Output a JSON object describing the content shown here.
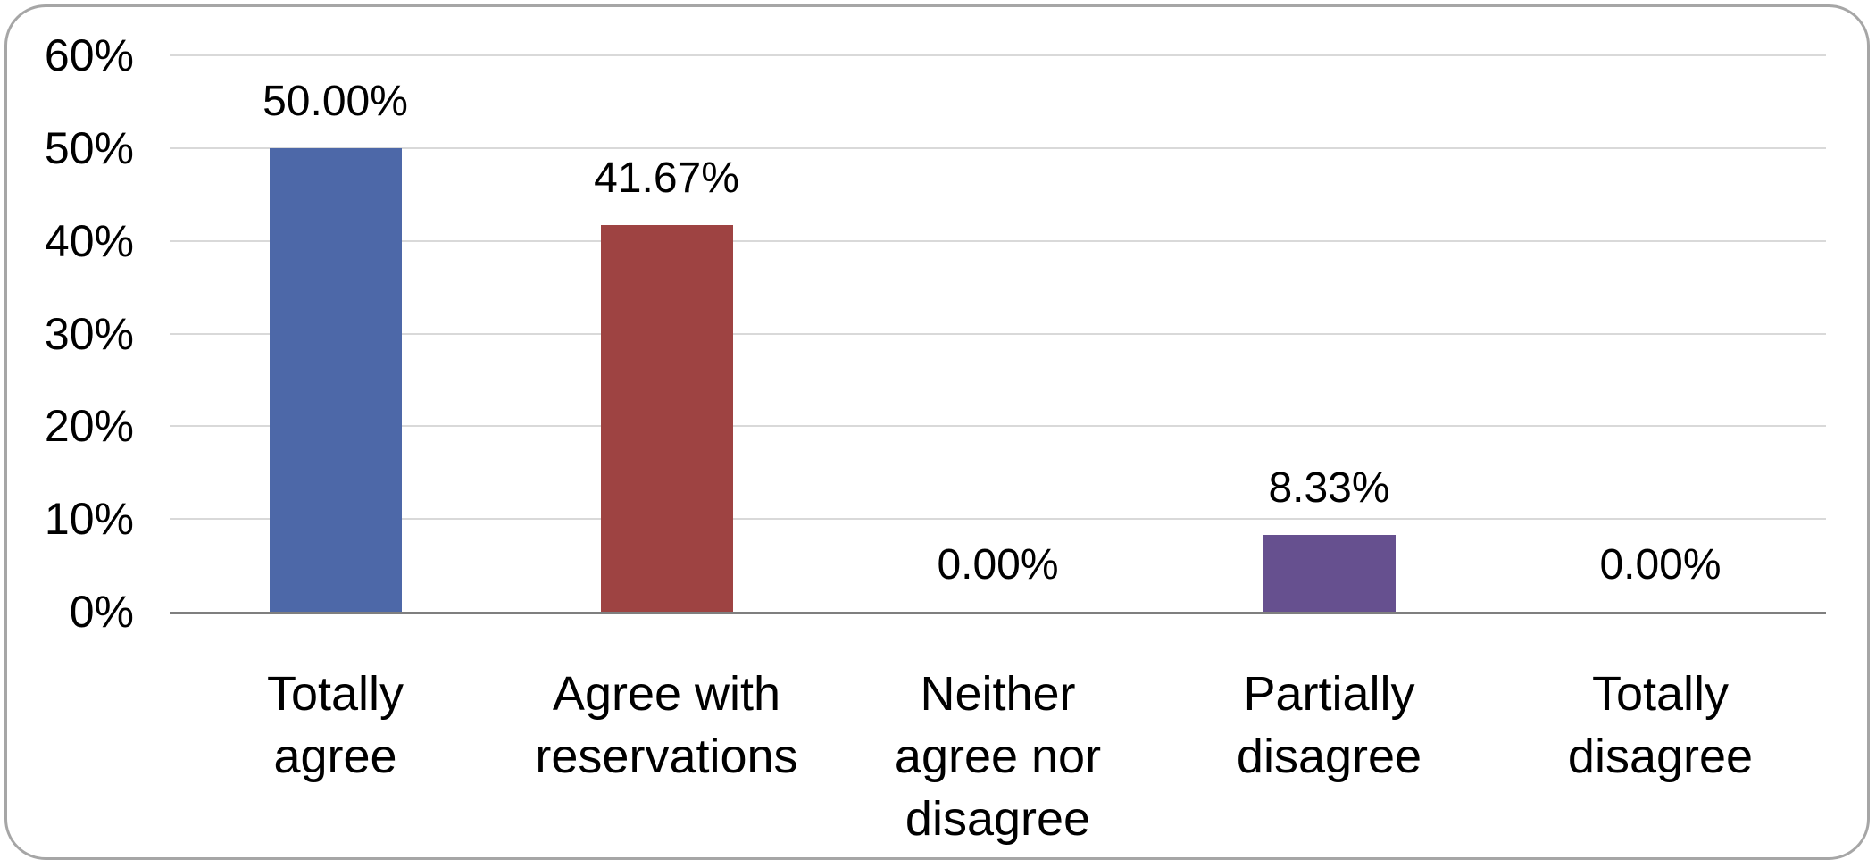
{
  "chart_data": {
    "type": "bar",
    "title": "",
    "xlabel": "",
    "ylabel": "",
    "categories": [
      "Totally agree",
      "Agree with reservations",
      "Neither agree nor disagree",
      "Partially disagree",
      "Totally disagree"
    ],
    "category_lines": [
      [
        "Totally",
        "agree"
      ],
      [
        "Agree with",
        "reservations"
      ],
      [
        "Neither",
        "agree nor",
        "disagree"
      ],
      [
        "Partially",
        "disagree"
      ],
      [
        "Totally",
        "disagree"
      ]
    ],
    "values": [
      50.0,
      41.67,
      0.0,
      8.33,
      0.0
    ],
    "value_labels": [
      "50.00%",
      "41.67%",
      "0.00%",
      "8.33%",
      "0.00%"
    ],
    "point_colors": [
      "#4d68a8",
      "#9e4342",
      null,
      "#66508f",
      null
    ],
    "ylim": [
      0,
      60
    ],
    "yticks": [
      0,
      10,
      20,
      30,
      40,
      50,
      60
    ],
    "ytick_labels": [
      "0%",
      "10%",
      "20%",
      "30%",
      "40%",
      "50%",
      "60%"
    ],
    "grid": true,
    "legend": false
  },
  "style": {
    "gridline_color": "#d9d9d9",
    "axis_line_color": "#7f7f7f",
    "frame_border_color": "#a6a6a6",
    "text_color": "#000000",
    "background_color": "#ffffff"
  }
}
